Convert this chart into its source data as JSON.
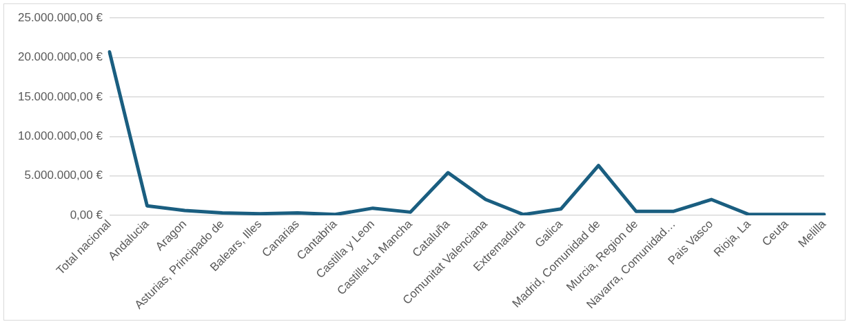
{
  "chart_data": {
    "type": "line",
    "categories": [
      "Total nacional",
      "Andalucia",
      "Aragon",
      "Asturias, Principado de",
      "Balears, Illes",
      "Canarias",
      "Cantabria",
      "Castilla y Leon",
      "Castilla-La Mancha",
      "Cataluña",
      "Comunitat Valenciana",
      "Extremadura",
      "Galica",
      "Madrid, Comunidad de",
      "Murcia, Region de",
      "Navarra, Comunidad…",
      "Pais Vasco",
      "Rioja, La",
      "Ceuta",
      "Melilla"
    ],
    "series": [
      {
        "color": "#1a5e80",
        "values": [
          20700000,
          1200000,
          600000,
          300000,
          200000,
          300000,
          100000,
          900000,
          400000,
          5400000,
          2000000,
          100000,
          800000,
          6300000,
          500000,
          500000,
          2000000,
          100000,
          100000,
          100000
        ]
      }
    ],
    "ylim": [
      0,
      25000000
    ],
    "yticks": [
      {
        "value": 0,
        "label": "0,00 €"
      },
      {
        "value": 5000000,
        "label": "5.000.000,00 €"
      },
      {
        "value": 10000000,
        "label": "10.000.000,00 €"
      },
      {
        "value": 15000000,
        "label": "15.000.000,00 €"
      },
      {
        "value": 20000000,
        "label": "20.000.000,00 €"
      },
      {
        "value": 25000000,
        "label": "25.000.000,00 €"
      }
    ],
    "grid": "y",
    "legend": false,
    "marker": "none",
    "line_style": "solid"
  }
}
